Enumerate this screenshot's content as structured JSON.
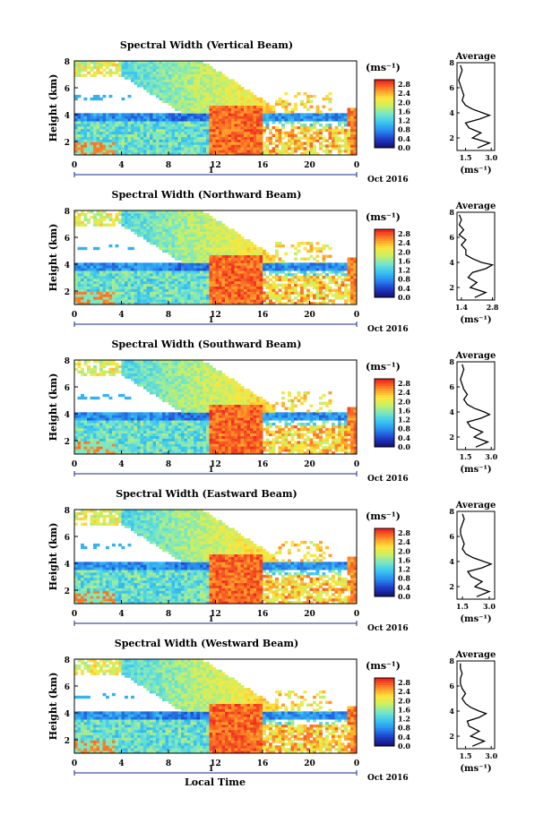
{
  "figure": {
    "xlabel": "Local Time",
    "colorbar_unit": "(ms⁻¹)",
    "profile_title": "Average",
    "profile_unit": "(ms⁻¹)",
    "date_label": "Oct 2016",
    "day_label": "1"
  },
  "chart_data": [
    {
      "type": "heatmap",
      "title": "Spectral Width (Vertical Beam)",
      "ylabel": "Height (km)",
      "x_ticks": [
        "0",
        "4",
        "8",
        "12",
        "16",
        "20",
        "0"
      ],
      "y_ticks": [
        "2",
        "4",
        "6",
        "8"
      ],
      "xlim": [
        0,
        24
      ],
      "ylim": [
        1,
        8
      ],
      "colorbar": {
        "ticks": [
          "0.0",
          "0.4",
          "0.8",
          "1.2",
          "1.6",
          "2.0",
          "2.4",
          "2.8"
        ],
        "range": [
          0,
          3.0
        ]
      },
      "profile": {
        "xlim": [
          1.0,
          3.2
        ],
        "x_ticks": [
          "1.5",
          "3.0"
        ],
        "y_ticks": [
          "2",
          "4",
          "6",
          "8"
        ],
        "height": [
          1.2,
          1.6,
          2.0,
          2.4,
          2.8,
          3.2,
          3.5,
          3.8,
          4.0,
          4.3,
          4.6,
          5.0,
          5.4,
          5.8,
          6.2,
          6.6,
          7.0,
          7.4,
          7.8
        ],
        "value": [
          2.2,
          2.9,
          1.9,
          2.4,
          1.7,
          1.5,
          2.3,
          2.9,
          2.5,
          1.9,
          1.5,
          1.3,
          1.4,
          1.3,
          1.2,
          1.1,
          1.2,
          1.3,
          1.2
        ]
      }
    },
    {
      "type": "heatmap",
      "title": "Spectral Width (Northward Beam)",
      "ylabel": "Height (km)",
      "x_ticks": [
        "0",
        "4",
        "8",
        "12",
        "16",
        "20",
        "0"
      ],
      "y_ticks": [
        "2",
        "4",
        "6",
        "8"
      ],
      "xlim": [
        0,
        24
      ],
      "ylim": [
        1,
        8
      ],
      "colorbar": {
        "ticks": [
          "0.0",
          "0.4",
          "0.8",
          "1.2",
          "1.6",
          "2.0",
          "2.4",
          "2.8"
        ],
        "range": [
          0,
          3.0
        ]
      },
      "profile": {
        "xlim": [
          1.2,
          2.9
        ],
        "x_ticks": [
          "1.4",
          "2.8"
        ],
        "y_ticks": [
          "2",
          "4",
          "6",
          "8"
        ],
        "height": [
          1.2,
          1.6,
          2.0,
          2.4,
          2.8,
          3.2,
          3.5,
          3.8,
          4.0,
          4.3,
          4.6,
          5.0,
          5.4,
          5.8,
          6.2,
          6.6,
          7.0,
          7.4,
          7.8
        ],
        "value": [
          2.0,
          2.5,
          1.8,
          2.1,
          1.7,
          1.9,
          2.5,
          2.8,
          2.3,
          1.9,
          1.6,
          1.6,
          1.4,
          1.6,
          1.3,
          1.5,
          1.3,
          1.4,
          1.3
        ]
      }
    },
    {
      "type": "heatmap",
      "title": "Spectral Width (Southward Beam)",
      "ylabel": "Height (km)",
      "x_ticks": [
        "0",
        "4",
        "8",
        "12",
        "16",
        "20",
        "0"
      ],
      "y_ticks": [
        "2",
        "4",
        "6",
        "8"
      ],
      "xlim": [
        0,
        24
      ],
      "ylim": [
        1,
        8
      ],
      "colorbar": {
        "ticks": [
          "0.0",
          "0.4",
          "0.8",
          "1.2",
          "1.6",
          "2.0",
          "2.4",
          "2.8"
        ],
        "range": [
          0,
          3.0
        ]
      },
      "profile": {
        "xlim": [
          1.0,
          3.2
        ],
        "x_ticks": [
          "1.5",
          "3.0"
        ],
        "y_ticks": [
          "2",
          "4",
          "6",
          "8"
        ],
        "height": [
          1.2,
          1.6,
          2.0,
          2.4,
          2.8,
          3.2,
          3.5,
          3.8,
          4.0,
          4.3,
          4.6,
          5.0,
          5.4,
          5.8,
          6.2,
          6.6,
          7.0,
          7.4,
          7.8
        ],
        "value": [
          2.1,
          2.8,
          2.0,
          2.5,
          1.8,
          1.6,
          2.4,
          2.9,
          2.6,
          2.0,
          1.6,
          1.4,
          1.6,
          1.4,
          1.3,
          1.2,
          1.3,
          1.4,
          1.3
        ]
      }
    },
    {
      "type": "heatmap",
      "title": "Spectral Width (Eastward Beam)",
      "ylabel": "Height (km)",
      "x_ticks": [
        "0",
        "4",
        "8",
        "12",
        "16",
        "20",
        "0"
      ],
      "y_ticks": [
        "2",
        "4",
        "6",
        "8"
      ],
      "xlim": [
        0,
        24
      ],
      "ylim": [
        1,
        8
      ],
      "colorbar": {
        "ticks": [
          "0.0",
          "0.4",
          "0.8",
          "1.2",
          "1.6",
          "2.0",
          "2.4",
          "2.8"
        ],
        "range": [
          0,
          3.0
        ]
      },
      "profile": {
        "xlim": [
          1.2,
          3.3
        ],
        "x_ticks": [
          "1.5",
          "3.0"
        ],
        "y_ticks": [
          "2",
          "4",
          "6",
          "8"
        ],
        "height": [
          1.2,
          1.6,
          2.0,
          2.4,
          2.8,
          3.2,
          3.5,
          3.8,
          4.0,
          4.3,
          4.6,
          5.0,
          5.4,
          5.8,
          6.2,
          6.6,
          7.0,
          7.4,
          7.8
        ],
        "value": [
          2.3,
          3.0,
          2.2,
          2.6,
          2.0,
          1.8,
          2.6,
          3.1,
          2.7,
          2.1,
          1.7,
          1.5,
          1.6,
          1.5,
          1.4,
          1.4,
          1.5,
          1.6,
          1.5
        ]
      }
    },
    {
      "type": "heatmap",
      "title": "Spectral Width (Westward Beam)",
      "ylabel": "Height (km)",
      "x_ticks": [
        "0",
        "4",
        "8",
        "12",
        "16",
        "20",
        "0"
      ],
      "y_ticks": [
        "2",
        "4",
        "6",
        "8"
      ],
      "xlim": [
        0,
        24
      ],
      "ylim": [
        1,
        8
      ],
      "colorbar": {
        "ticks": [
          "0.0",
          "0.4",
          "0.8",
          "1.2",
          "1.6",
          "2.0",
          "2.4",
          "2.8"
        ],
        "range": [
          0,
          3.0
        ]
      },
      "profile": {
        "xlim": [
          1.0,
          3.2
        ],
        "x_ticks": [
          "1.5",
          "3.0"
        ],
        "y_ticks": [
          "2",
          "4",
          "6",
          "8"
        ],
        "height": [
          1.2,
          1.6,
          2.0,
          2.4,
          2.8,
          3.2,
          3.5,
          3.8,
          4.0,
          4.3,
          4.6,
          5.0,
          5.4,
          5.8,
          6.2,
          6.6,
          7.0,
          7.4,
          7.8
        ],
        "value": [
          1.9,
          2.6,
          1.8,
          2.3,
          1.7,
          1.6,
          2.3,
          2.7,
          2.3,
          1.8,
          1.5,
          1.3,
          1.5,
          1.3,
          1.2,
          1.2,
          1.3,
          1.2,
          1.2
        ]
      }
    }
  ]
}
